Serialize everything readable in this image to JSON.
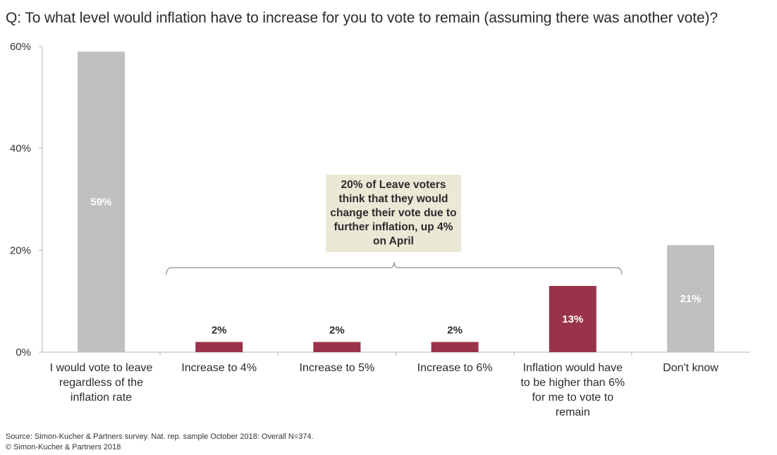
{
  "chart_data": {
    "type": "bar",
    "title": "Q: To what level would inflation have to increase for you to vote to remain (assuming there was another vote)?",
    "categories": [
      "I would vote to leave regardless of the inflation rate",
      "Increase to 4%",
      "Increase to 5%",
      "Increase to 6%",
      "Inflation would have to be higher than 6% for me to vote to remain",
      "Don't know"
    ],
    "category_lines": [
      [
        "I would vote to leave",
        "regardless of the",
        "inflation rate"
      ],
      [
        "Increase to 4%"
      ],
      [
        "Increase to 5%"
      ],
      [
        "Increase to 6%"
      ],
      [
        "Inflation would have",
        "to be higher than 6%",
        "for me to vote to",
        "remain"
      ],
      [
        "Don't know"
      ]
    ],
    "values": [
      59,
      2,
      2,
      2,
      13,
      21
    ],
    "data_labels": [
      "59%",
      "2%",
      "2%",
      "2%",
      "13%",
      "21%"
    ],
    "bar_colors": [
      "#c0c0c0",
      "#99334a",
      "#99334a",
      "#99334a",
      "#99334a",
      "#c0c0c0"
    ],
    "ylim": [
      0,
      60
    ],
    "yticks": [
      0,
      20,
      40,
      60
    ],
    "ytick_labels": [
      "0%",
      "20%",
      "40%",
      "60%"
    ],
    "xlabel": "",
    "ylabel": "",
    "grid": false,
    "annotation": {
      "text": "20% of Leave voters think that they would change their vote due to further inflation, up 4% on April",
      "background": "#ece8d6",
      "spans_categories": [
        1,
        4
      ]
    }
  },
  "footer": {
    "source": "Source: Simon-Kucher & Partners survey. Nat. rep. sample October 2018: Overall N=374.",
    "copyright": "© Simon-Kucher & Partners 2018"
  }
}
